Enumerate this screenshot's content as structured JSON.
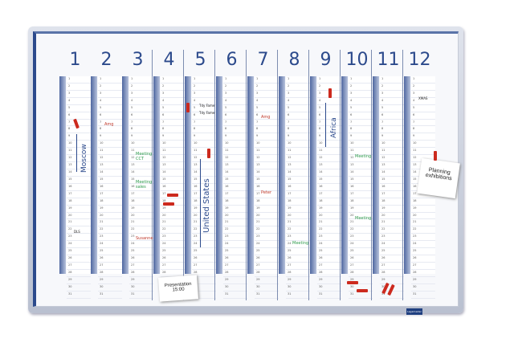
{
  "months": [
    "1",
    "2",
    "3",
    "4",
    "5",
    "6",
    "7",
    "8",
    "9",
    "10",
    "11",
    "12"
  ],
  "days": [
    1,
    2,
    3,
    4,
    5,
    6,
    7,
    8,
    9,
    10,
    11,
    12,
    13,
    14,
    15,
    16,
    17,
    18,
    19,
    20,
    21,
    22,
    23,
    24,
    25,
    26,
    27,
    28,
    29,
    30,
    31
  ],
  "notes": {
    "moscow": "Moscow",
    "africa": "Africa",
    "united_states": "United States",
    "amg_feb": "Amg",
    "amg_jul": "Amg",
    "peter": "Peter",
    "susanne": "Susanne",
    "meeting_cct": "Meeting CCT",
    "meeting_sales": "Meeting sales",
    "meeting_aug": "Meeting",
    "oct_1": "Meeting",
    "oct_2": "Meeting",
    "trade_fair": "Tdy Fame",
    "trade_fair2": "Tdy Fame",
    "dec_note": "XMAS",
    "jan_note": "DLS"
  },
  "cards": {
    "presentation": "Presentation",
    "presentation_time": "15:00",
    "planning": "Planning",
    "exhibitions": "exhibitions"
  },
  "logo": "Legamaster",
  "colors": {
    "frame": "#2c4a8c",
    "marker_red": "#cc2a1e",
    "marker_green": "#2d9a4b"
  }
}
